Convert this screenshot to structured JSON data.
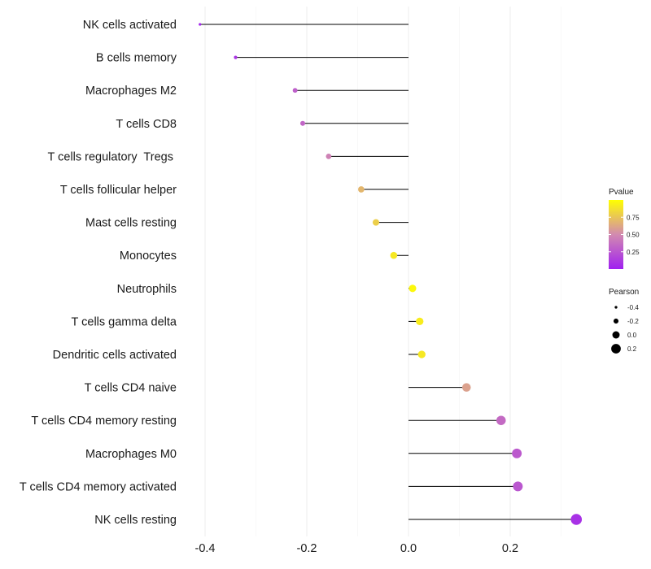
{
  "chart_data": {
    "type": "lollipop",
    "title": "",
    "xlabel": "",
    "ylabel": "",
    "xlim": [
      -0.41,
      0.33
    ],
    "x_ticks": [
      -0.4,
      -0.2,
      0.0,
      0.2
    ],
    "x_tick_labels": [
      "-0.4",
      "-0.2",
      "0.0",
      "0.2"
    ],
    "categories": [
      "NK cells activated",
      "B cells memory",
      "Macrophages M2",
      "T cells CD8",
      "T cells regulatory  Tregs ",
      "T cells follicular helper",
      "Mast cells resting",
      "Monocytes",
      "Neutrophils",
      "T cells gamma delta",
      "Dendritic cells activated",
      "T cells CD4 naive",
      "T cells CD4 memory resting",
      "Macrophages M0",
      "T cells CD4 memory activated",
      "NK cells resting"
    ],
    "pearson": [
      -0.41,
      -0.34,
      -0.223,
      -0.208,
      -0.157,
      -0.093,
      -0.064,
      -0.029,
      0.008,
      0.022,
      0.026,
      0.114,
      0.182,
      0.213,
      0.215,
      0.33
    ],
    "pvalue": [
      0.02,
      0.1,
      0.3,
      0.33,
      0.46,
      0.69,
      0.79,
      0.9,
      0.97,
      0.92,
      0.9,
      0.6,
      0.35,
      0.27,
      0.26,
      0.08
    ],
    "legend_color": {
      "title": "Pvalue",
      "ticks": [
        0.25,
        0.5,
        0.75
      ],
      "tick_labels": [
        "0.25",
        "0.50",
        "0.75"
      ],
      "range": [
        0.0,
        1.0
      ],
      "low_color": "#a020f0",
      "mid_color": "#d28ab0",
      "high_color": "#ffff00",
      "placement": "right"
    },
    "legend_size": {
      "title": "Pearson",
      "values": [
        -0.4,
        -0.2,
        0.0,
        0.2
      ],
      "labels": [
        "-0.4",
        "-0.2",
        "0.0",
        "0.2"
      ],
      "placement": "right"
    },
    "grid": "vertical",
    "segment_color": "#000000",
    "grid_color": "#ebebeb"
  }
}
